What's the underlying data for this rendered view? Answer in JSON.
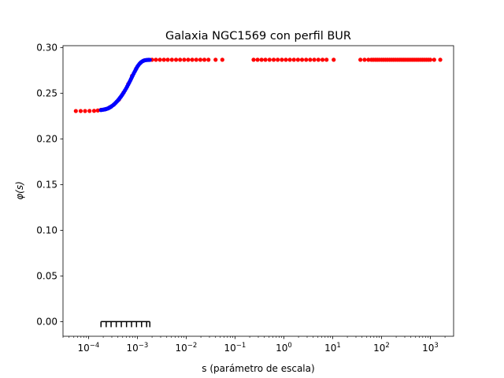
{
  "chart_data": {
    "type": "scatter",
    "title": "Galaxia NGC1569 con perfil BUR",
    "xlabel": "s (parámetro de escala)",
    "ylabel": "φ(s)",
    "xscale": "log",
    "xlim": [
      3e-05,
      3000
    ],
    "ylim": [
      -0.016,
      0.302
    ],
    "xticks": [
      {
        "value": 0.0001,
        "base": "10",
        "exp": "−4"
      },
      {
        "value": 0.001,
        "base": "10",
        "exp": "−3"
      },
      {
        "value": 0.01,
        "base": "10",
        "exp": "−2"
      },
      {
        "value": 0.1,
        "base": "10",
        "exp": "−1"
      },
      {
        "value": 1,
        "base": "10",
        "exp": "0"
      },
      {
        "value": 10,
        "base": "10",
        "exp": "1"
      },
      {
        "value": 100,
        "base": "10",
        "exp": "2"
      },
      {
        "value": 1000,
        "base": "10",
        "exp": "3"
      }
    ],
    "yticks": [
      {
        "value": 0.0,
        "label": "0.00"
      },
      {
        "value": 0.05,
        "label": "0.05"
      },
      {
        "value": 0.1,
        "label": "0.10"
      },
      {
        "value": 0.15,
        "label": "0.15"
      },
      {
        "value": 0.2,
        "label": "0.20"
      },
      {
        "value": 0.25,
        "label": "0.25"
      },
      {
        "value": 0.3,
        "label": "0.30"
      }
    ],
    "grid": false,
    "series": [
      {
        "color": "#ff0000",
        "marker": "circle",
        "points": [
          [
            5.5e-05,
            0.2305
          ],
          [
            6.9e-05,
            0.2305
          ],
          [
            8.5e-05,
            0.2305
          ],
          [
            0.000105,
            0.2306
          ],
          [
            0.00013,
            0.2307
          ],
          [
            0.000155,
            0.2311
          ],
          [
            0.00018,
            0.2318
          ],
          [
            0.00022,
            0.2324
          ],
          [
            0.00027,
            0.2345
          ],
          [
            0.00033,
            0.2375
          ],
          [
            0.00042,
            0.243
          ],
          [
            0.00052,
            0.2505
          ],
          [
            0.00065,
            0.26
          ],
          [
            0.00078,
            0.269
          ],
          [
            0.00095,
            0.277
          ],
          [
            0.00115,
            0.283
          ],
          [
            0.0014,
            0.286
          ],
          [
            0.0017,
            0.2865
          ],
          [
            0.002,
            0.2866
          ],
          [
            0.0024,
            0.2866
          ],
          [
            0.0029,
            0.2866
          ],
          [
            0.0035,
            0.2866
          ],
          [
            0.0042,
            0.2866
          ],
          [
            0.0051,
            0.2866
          ],
          [
            0.0062,
            0.2866
          ],
          [
            0.0075,
            0.2866
          ],
          [
            0.0091,
            0.2866
          ],
          [
            0.011,
            0.2866
          ],
          [
            0.0133,
            0.2866
          ],
          [
            0.0161,
            0.2866
          ],
          [
            0.0195,
            0.2866
          ],
          [
            0.0236,
            0.2866
          ],
          [
            0.0286,
            0.2866
          ],
          [
            0.04,
            0.2866
          ],
          [
            0.055,
            0.2866
          ],
          [
            0.24,
            0.2866
          ],
          [
            0.29,
            0.2866
          ],
          [
            0.35,
            0.2866
          ],
          [
            0.42,
            0.2866
          ],
          [
            0.51,
            0.2866
          ],
          [
            0.62,
            0.2866
          ],
          [
            0.75,
            0.2866
          ],
          [
            0.91,
            0.2866
          ],
          [
            1.1,
            0.2866
          ],
          [
            1.33,
            0.2866
          ],
          [
            1.61,
            0.2866
          ],
          [
            1.95,
            0.2866
          ],
          [
            2.36,
            0.2866
          ],
          [
            2.86,
            0.2866
          ],
          [
            3.46,
            0.2866
          ],
          [
            4.2,
            0.2866
          ],
          [
            5.1,
            0.2866
          ],
          [
            6.2,
            0.2866
          ],
          [
            7.5,
            0.2866
          ],
          [
            10.5,
            0.2866
          ],
          [
            37,
            0.2866
          ],
          [
            45,
            0.2866
          ],
          [
            54,
            0.2866
          ],
          [
            62,
            0.2866
          ],
          [
            68,
            0.2866
          ],
          [
            75,
            0.2866
          ],
          [
            82,
            0.2866
          ],
          [
            90,
            0.2866
          ],
          [
            100,
            0.2866
          ],
          [
            110,
            0.2866
          ],
          [
            121,
            0.2866
          ],
          [
            133,
            0.2866
          ],
          [
            147,
            0.2866
          ],
          [
            162,
            0.2866
          ],
          [
            178,
            0.2866
          ],
          [
            196,
            0.2866
          ],
          [
            216,
            0.2866
          ],
          [
            238,
            0.2866
          ],
          [
            262,
            0.2866
          ],
          [
            288,
            0.2866
          ],
          [
            317,
            0.2866
          ],
          [
            349,
            0.2866
          ],
          [
            384,
            0.2866
          ],
          [
            423,
            0.2866
          ],
          [
            465,
            0.2866
          ],
          [
            512,
            0.2866
          ],
          [
            563,
            0.2866
          ],
          [
            620,
            0.2866
          ],
          [
            682,
            0.2866
          ],
          [
            750,
            0.2866
          ],
          [
            826,
            0.2866
          ],
          [
            909,
            0.2866
          ],
          [
            1000,
            0.2866
          ],
          [
            1200,
            0.2866
          ],
          [
            1600,
            0.2866
          ]
        ]
      },
      {
        "color": "#0000ff",
        "marker": "circle",
        "points": [
          [
            0.00018,
            0.2315
          ],
          [
            0.00019,
            0.2318
          ],
          [
            0.0002,
            0.232
          ],
          [
            0.00021,
            0.2322
          ],
          [
            0.00022,
            0.2324
          ],
          [
            0.00023,
            0.2327
          ],
          [
            0.00024,
            0.233
          ],
          [
            0.00025,
            0.2334
          ],
          [
            0.00026,
            0.2338
          ],
          [
            0.00027,
            0.2343
          ],
          [
            0.00028,
            0.2348
          ],
          [
            0.00029,
            0.2353
          ],
          [
            0.0003,
            0.2359
          ],
          [
            0.00032,
            0.237
          ],
          [
            0.00034,
            0.2382
          ],
          [
            0.00036,
            0.2395
          ],
          [
            0.00038,
            0.2408
          ],
          [
            0.0004,
            0.2421
          ],
          [
            0.00042,
            0.2435
          ],
          [
            0.00044,
            0.2449
          ],
          [
            0.00046,
            0.2462
          ],
          [
            0.00048,
            0.2476
          ],
          [
            0.0005,
            0.249
          ],
          [
            0.00053,
            0.2511
          ],
          [
            0.00056,
            0.2532
          ],
          [
            0.00059,
            0.2553
          ],
          [
            0.00062,
            0.2574
          ],
          [
            0.00065,
            0.2595
          ],
          [
            0.00068,
            0.2615
          ],
          [
            0.00071,
            0.2635
          ],
          [
            0.00074,
            0.2655
          ],
          [
            0.00077,
            0.2674
          ],
          [
            0.0008,
            0.2692
          ],
          [
            0.00084,
            0.2714
          ],
          [
            0.00088,
            0.2735
          ],
          [
            0.00092,
            0.2755
          ],
          [
            0.00096,
            0.2773
          ],
          [
            0.001,
            0.279
          ],
          [
            0.00105,
            0.2806
          ],
          [
            0.0011,
            0.282
          ],
          [
            0.00115,
            0.2831
          ],
          [
            0.0012,
            0.284
          ],
          [
            0.00126,
            0.2848
          ],
          [
            0.00132,
            0.2854
          ],
          [
            0.00138,
            0.2858
          ],
          [
            0.00145,
            0.2861
          ],
          [
            0.00152,
            0.2863
          ],
          [
            0.0016,
            0.2864
          ],
          [
            0.0017,
            0.2865
          ],
          [
            0.0018,
            0.2865
          ]
        ]
      }
    ],
    "annotations": {
      "rug_marks": [
        0.00018,
        0.00023,
        0.00029,
        0.00037,
        0.00047,
        0.0006,
        0.00076,
        0.00096,
        0.00122,
        0.00155,
        0.0018
      ],
      "rug_bracket": {
        "x_start": 0.00018,
        "x_end": 0.0018,
        "y": 0.0
      }
    }
  }
}
